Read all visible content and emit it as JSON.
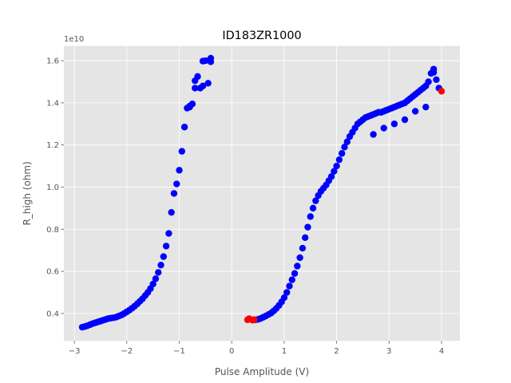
{
  "chart_data": {
    "type": "scatter",
    "title": "ID183ZR1000",
    "xlabel": "Pulse Amplitude (V)",
    "ylabel": "R_high (ohm)",
    "y_offset_label": "1e10",
    "xlim": [
      -3.2,
      4.35
    ],
    "ylim": [
      0.27,
      1.67
    ],
    "xticks": [
      -3,
      -2,
      -1,
      0,
      1,
      2,
      3,
      4
    ],
    "xtick_labels": [
      "−3",
      "−2",
      "−1",
      "0",
      "1",
      "2",
      "3",
      "4"
    ],
    "yticks": [
      0.4,
      0.6,
      0.8,
      1.0,
      1.2,
      1.4,
      1.6
    ],
    "ytick_labels": [
      "0.4",
      "0.6",
      "0.8",
      "1.0",
      "1.2",
      "1.4",
      "1.6"
    ],
    "grid": true,
    "colors": {
      "background": "#e5e5e5",
      "grid": "#ffffff",
      "blue": "#0000ff",
      "red": "#ff0000"
    },
    "series": [
      {
        "color": "#0000ff",
        "x": [
          -2.85,
          -2.8,
          -2.75,
          -2.7,
          -2.65,
          -2.6,
          -2.55,
          -2.5,
          -2.45,
          -2.4,
          -2.35,
          -2.3,
          -2.25,
          -2.2,
          -2.15,
          -2.1,
          -2.05,
          -2.0,
          -1.95,
          -1.9,
          -1.85,
          -1.8,
          -1.75,
          -1.7,
          -1.65,
          -1.6,
          -1.55,
          -1.5,
          -1.45,
          -1.4,
          -1.35,
          -1.3,
          -1.25,
          -1.2,
          -1.15,
          -1.1,
          -1.05,
          -1.0,
          -0.95,
          -0.9,
          -0.85,
          -0.8,
          -0.75,
          -0.7,
          -0.65,
          -0.6,
          -0.55,
          -0.5,
          -0.45,
          -0.4,
          -0.8,
          -0.7,
          -0.55,
          -0.4
        ],
        "y": [
          0.335,
          0.338,
          0.342,
          0.347,
          0.352,
          0.356,
          0.36,
          0.364,
          0.368,
          0.372,
          0.376,
          0.378,
          0.38,
          0.383,
          0.388,
          0.393,
          0.4,
          0.408,
          0.416,
          0.425,
          0.435,
          0.446,
          0.458,
          0.47,
          0.485,
          0.5,
          0.518,
          0.54,
          0.565,
          0.595,
          0.63,
          0.67,
          0.72,
          0.78,
          0.88,
          0.97,
          1.015,
          1.08,
          1.17,
          1.285,
          1.375,
          1.38,
          1.395,
          1.505,
          1.525,
          1.47,
          1.598,
          1.6,
          1.493,
          1.612,
          1.385,
          1.47,
          1.48,
          1.595
        ]
      },
      {
        "color": "#0000ff",
        "x": [
          0.45,
          0.5,
          0.55,
          0.6,
          0.65,
          0.7,
          0.75,
          0.8,
          0.85,
          0.9,
          0.95,
          1.0,
          1.05,
          1.1,
          1.15,
          1.2,
          1.25,
          1.3,
          1.35,
          1.4,
          1.45,
          1.5,
          1.55,
          1.6,
          1.65,
          1.7,
          1.75,
          1.8,
          1.85,
          1.9,
          1.95,
          2.0,
          2.05,
          2.1,
          2.15,
          2.2,
          2.25,
          2.3,
          2.35,
          2.4,
          2.45,
          2.5,
          2.55,
          2.6,
          2.65,
          2.7,
          2.75,
          2.8,
          2.85,
          2.9,
          2.95,
          3.0,
          3.05,
          3.1,
          3.15,
          3.2,
          3.25,
          3.3,
          3.35,
          3.4,
          3.45,
          3.5,
          3.55,
          3.6,
          3.65,
          3.7,
          3.75,
          3.8,
          3.85,
          3.9,
          3.95,
          2.7,
          2.9,
          3.1,
          3.3,
          3.5,
          3.7,
          3.85
        ],
        "y": [
          0.37,
          0.372,
          0.376,
          0.382,
          0.388,
          0.395,
          0.402,
          0.412,
          0.424,
          0.438,
          0.455,
          0.475,
          0.5,
          0.53,
          0.56,
          0.59,
          0.625,
          0.665,
          0.71,
          0.76,
          0.81,
          0.86,
          0.9,
          0.935,
          0.96,
          0.98,
          0.995,
          1.01,
          1.03,
          1.05,
          1.075,
          1.1,
          1.13,
          1.16,
          1.19,
          1.215,
          1.24,
          1.26,
          1.28,
          1.3,
          1.31,
          1.32,
          1.33,
          1.335,
          1.34,
          1.345,
          1.35,
          1.355,
          1.355,
          1.36,
          1.365,
          1.37,
          1.375,
          1.38,
          1.385,
          1.39,
          1.395,
          1.4,
          1.41,
          1.42,
          1.43,
          1.44,
          1.45,
          1.46,
          1.47,
          1.48,
          1.5,
          1.54,
          1.56,
          1.51,
          1.47,
          1.25,
          1.28,
          1.3,
          1.32,
          1.36,
          1.38,
          1.545
        ]
      },
      {
        "color": "#ff0000",
        "x": [
          0.3,
          0.33,
          0.36,
          0.4,
          0.43,
          4.0
        ],
        "y": [
          0.37,
          0.375,
          0.372,
          0.368,
          0.371,
          1.455
        ]
      }
    ]
  }
}
